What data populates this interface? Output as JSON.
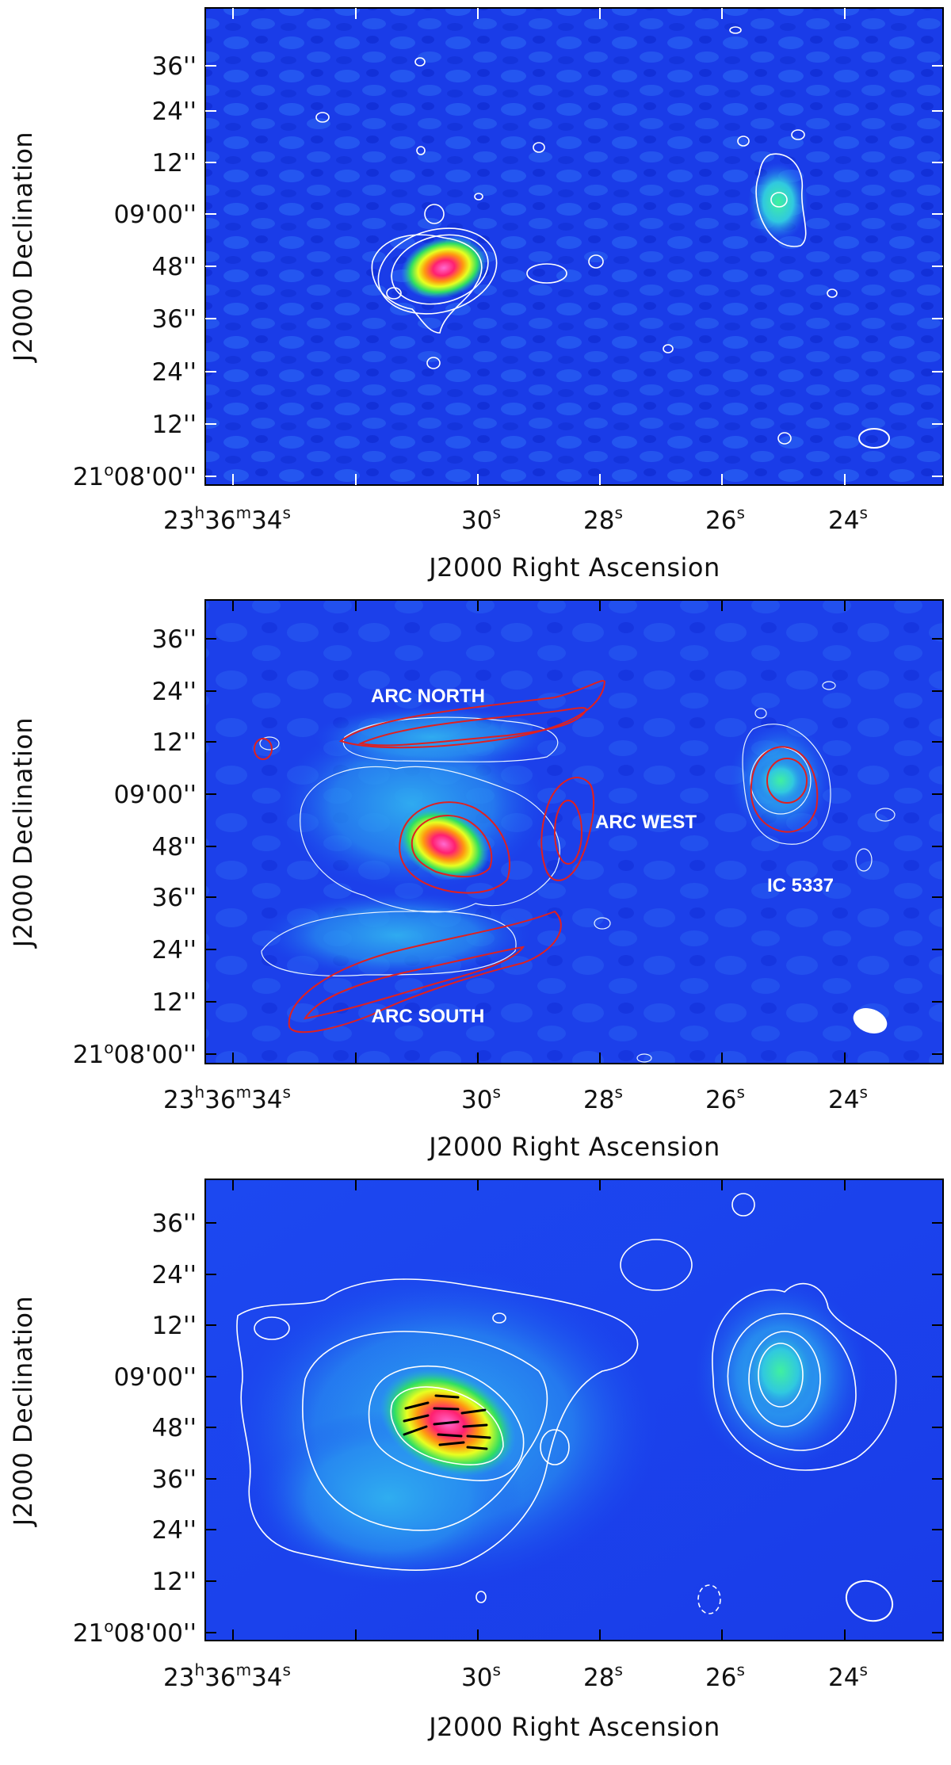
{
  "figure": {
    "panels": [
      {
        "id": "top",
        "xlabel": "J2000 Right Ascension",
        "ylabel": "J2000 Declination",
        "dec_ticks": [
          "36''",
          "24''",
          "12''",
          "09'00''",
          "48''",
          "36''",
          "24''",
          "12''"
        ],
        "dec_origin": [
          "21",
          "o",
          "08'00''"
        ],
        "ra_ticks": [
          {
            "main": "23",
            "h": "h",
            "m1": "36",
            "m": "m",
            "s1": "34",
            "s": "s"
          },
          {
            "main": "30",
            "s": "s"
          },
          {
            "main": "28",
            "s": "s"
          },
          {
            "main": "26",
            "s": "s"
          },
          {
            "main": "24",
            "s": "s"
          }
        ]
      },
      {
        "id": "middle",
        "xlabel": "J2000 Right Ascension",
        "ylabel": "J2000 Declination",
        "dec_ticks": [
          "36''",
          "24''",
          "12''",
          "09'00''",
          "48''",
          "36''",
          "24''",
          "12''"
        ],
        "dec_origin": [
          "21",
          "o",
          "08'00''"
        ],
        "ra_ticks": [
          {
            "main": "23",
            "h": "h",
            "m1": "36",
            "m": "m",
            "s1": "34",
            "s": "s"
          },
          {
            "main": "30",
            "s": "s"
          },
          {
            "main": "28",
            "s": "s"
          },
          {
            "main": "26",
            "s": "s"
          },
          {
            "main": "24",
            "s": "s"
          }
        ],
        "labels": {
          "arc_north": "ARC NORTH",
          "arc_west": "ARC WEST",
          "arc_south": "ARC SOUTH",
          "ic5337": "IC 5337"
        }
      },
      {
        "id": "bottom",
        "xlabel": "J2000 Right Ascension",
        "ylabel": "J2000 Declination",
        "dec_ticks": [
          "36''",
          "24''",
          "12''",
          "09'00''",
          "48''",
          "36''",
          "24''",
          "12''"
        ],
        "dec_origin": [
          "21",
          "o",
          "08'00''"
        ],
        "ra_ticks": [
          {
            "main": "23",
            "h": "h",
            "m1": "36",
            "m": "m",
            "s1": "34",
            "s": "s"
          },
          {
            "main": "30",
            "s": "s"
          },
          {
            "main": "28",
            "s": "s"
          },
          {
            "main": "26",
            "s": "s"
          },
          {
            "main": "24",
            "s": "s"
          }
        ]
      }
    ],
    "colors": {
      "background_map": "#1030e0",
      "contour": "#ffffff",
      "overlay_contour": "#e02020",
      "peak": "#ff40a0",
      "vectors": "#000000"
    }
  }
}
